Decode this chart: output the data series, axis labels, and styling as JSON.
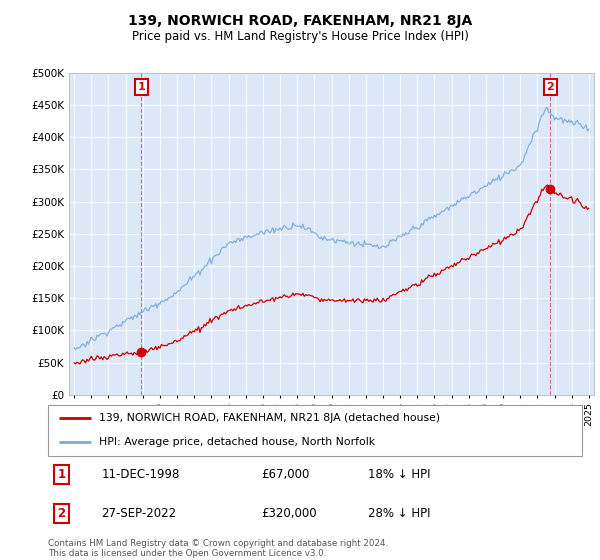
{
  "title": "139, NORWICH ROAD, FAKENHAM, NR21 8JA",
  "subtitle": "Price paid vs. HM Land Registry's House Price Index (HPI)",
  "legend_line1": "139, NORWICH ROAD, FAKENHAM, NR21 8JA (detached house)",
  "legend_line2": "HPI: Average price, detached house, North Norfolk",
  "annotation1_date": "11-DEC-1998",
  "annotation1_price": "£67,000",
  "annotation1_hpi": "18% ↓ HPI",
  "annotation2_date": "27-SEP-2022",
  "annotation2_price": "£320,000",
  "annotation2_hpi": "28% ↓ HPI",
  "footer": "Contains HM Land Registry data © Crown copyright and database right 2024.\nThis data is licensed under the Open Government Licence v3.0.",
  "red_color": "#cc0000",
  "blue_color": "#7aaadd",
  "plot_bg_color": "#dce8f8",
  "grid_color": "#ffffff",
  "ann_box_color": "#cc0000",
  "ylim": [
    0,
    500000
  ],
  "yticks": [
    0,
    50000,
    100000,
    150000,
    200000,
    250000,
    300000,
    350000,
    400000,
    450000,
    500000
  ],
  "ytick_labels": [
    "£0",
    "£50K",
    "£100K",
    "£150K",
    "£200K",
    "£250K",
    "£300K",
    "£350K",
    "£400K",
    "£450K",
    "£500K"
  ],
  "sale1_year": 1998.94,
  "sale1_val": 67000,
  "sale2_year": 2022.74,
  "sale2_val": 320000
}
